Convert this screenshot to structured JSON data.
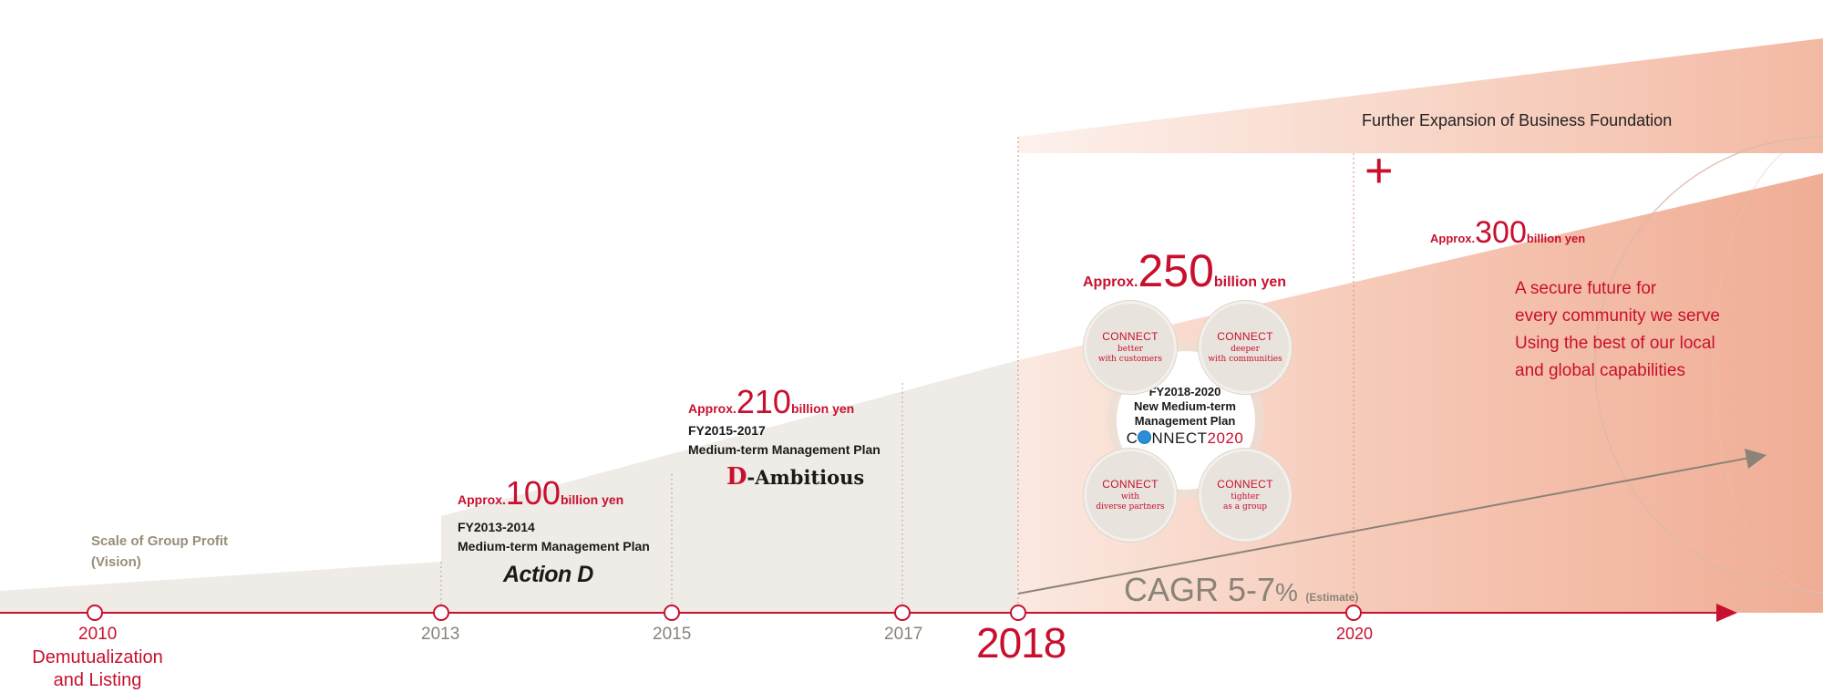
{
  "vision_label": [
    "Scale of Group Profit",
    "(Vision)"
  ],
  "timeline": {
    "years": [
      {
        "label": "2010",
        "sub": [
          "Demutualization",
          "and Listing"
        ]
      },
      {
        "label": "2013"
      },
      {
        "label": "2015"
      },
      {
        "label": "2017"
      },
      {
        "label": "2018"
      },
      {
        "label": "2020"
      }
    ]
  },
  "milestones": [
    {
      "approx": "Approx.",
      "value": "100",
      "unit": "billion yen",
      "plan": [
        "FY2013-2014",
        "Medium-term Management Plan"
      ],
      "logo": "Action D"
    },
    {
      "approx": "Approx.",
      "value": "210",
      "unit": "billion yen",
      "plan": [
        "FY2015-2017",
        "Medium-term Management Plan"
      ],
      "logo_mark": "D",
      "logo": "-Ambitious"
    },
    {
      "approx": "Approx.",
      "value": "250",
      "unit": "billion yen"
    },
    {
      "approx": "Approx.",
      "value": "300",
      "unit": "billion yen"
    }
  ],
  "connect": {
    "center": [
      "FY2018-2020",
      "New Medium-term",
      "Management Plan"
    ],
    "logo_a": "C",
    "logo_b": "NNECT",
    "logo_c": "2020",
    "bubbles": [
      {
        "title": "CONNECT",
        "sub": "better\nwith customers"
      },
      {
        "title": "CONNECT",
        "sub": "deeper\nwith communities"
      },
      {
        "title": "CONNECT",
        "sub": "with\ndiverse partners"
      },
      {
        "title": "CONNECT",
        "sub": "tighter\nas a group"
      }
    ]
  },
  "expansion_label": "Further Expansion of Business Foundation",
  "plus": "+",
  "future_text": [
    "A secure future for",
    "every community we serve",
    "Using the best of our local",
    "and global capabilities"
  ],
  "cagr": {
    "main": "CAGR 5-7",
    "pct": "%",
    "note": "(Estimate)"
  },
  "colors": {
    "accent": "#c8102e",
    "beige": "#efebe6",
    "salmon": "#f2b49e",
    "muted": "#8a8378"
  }
}
